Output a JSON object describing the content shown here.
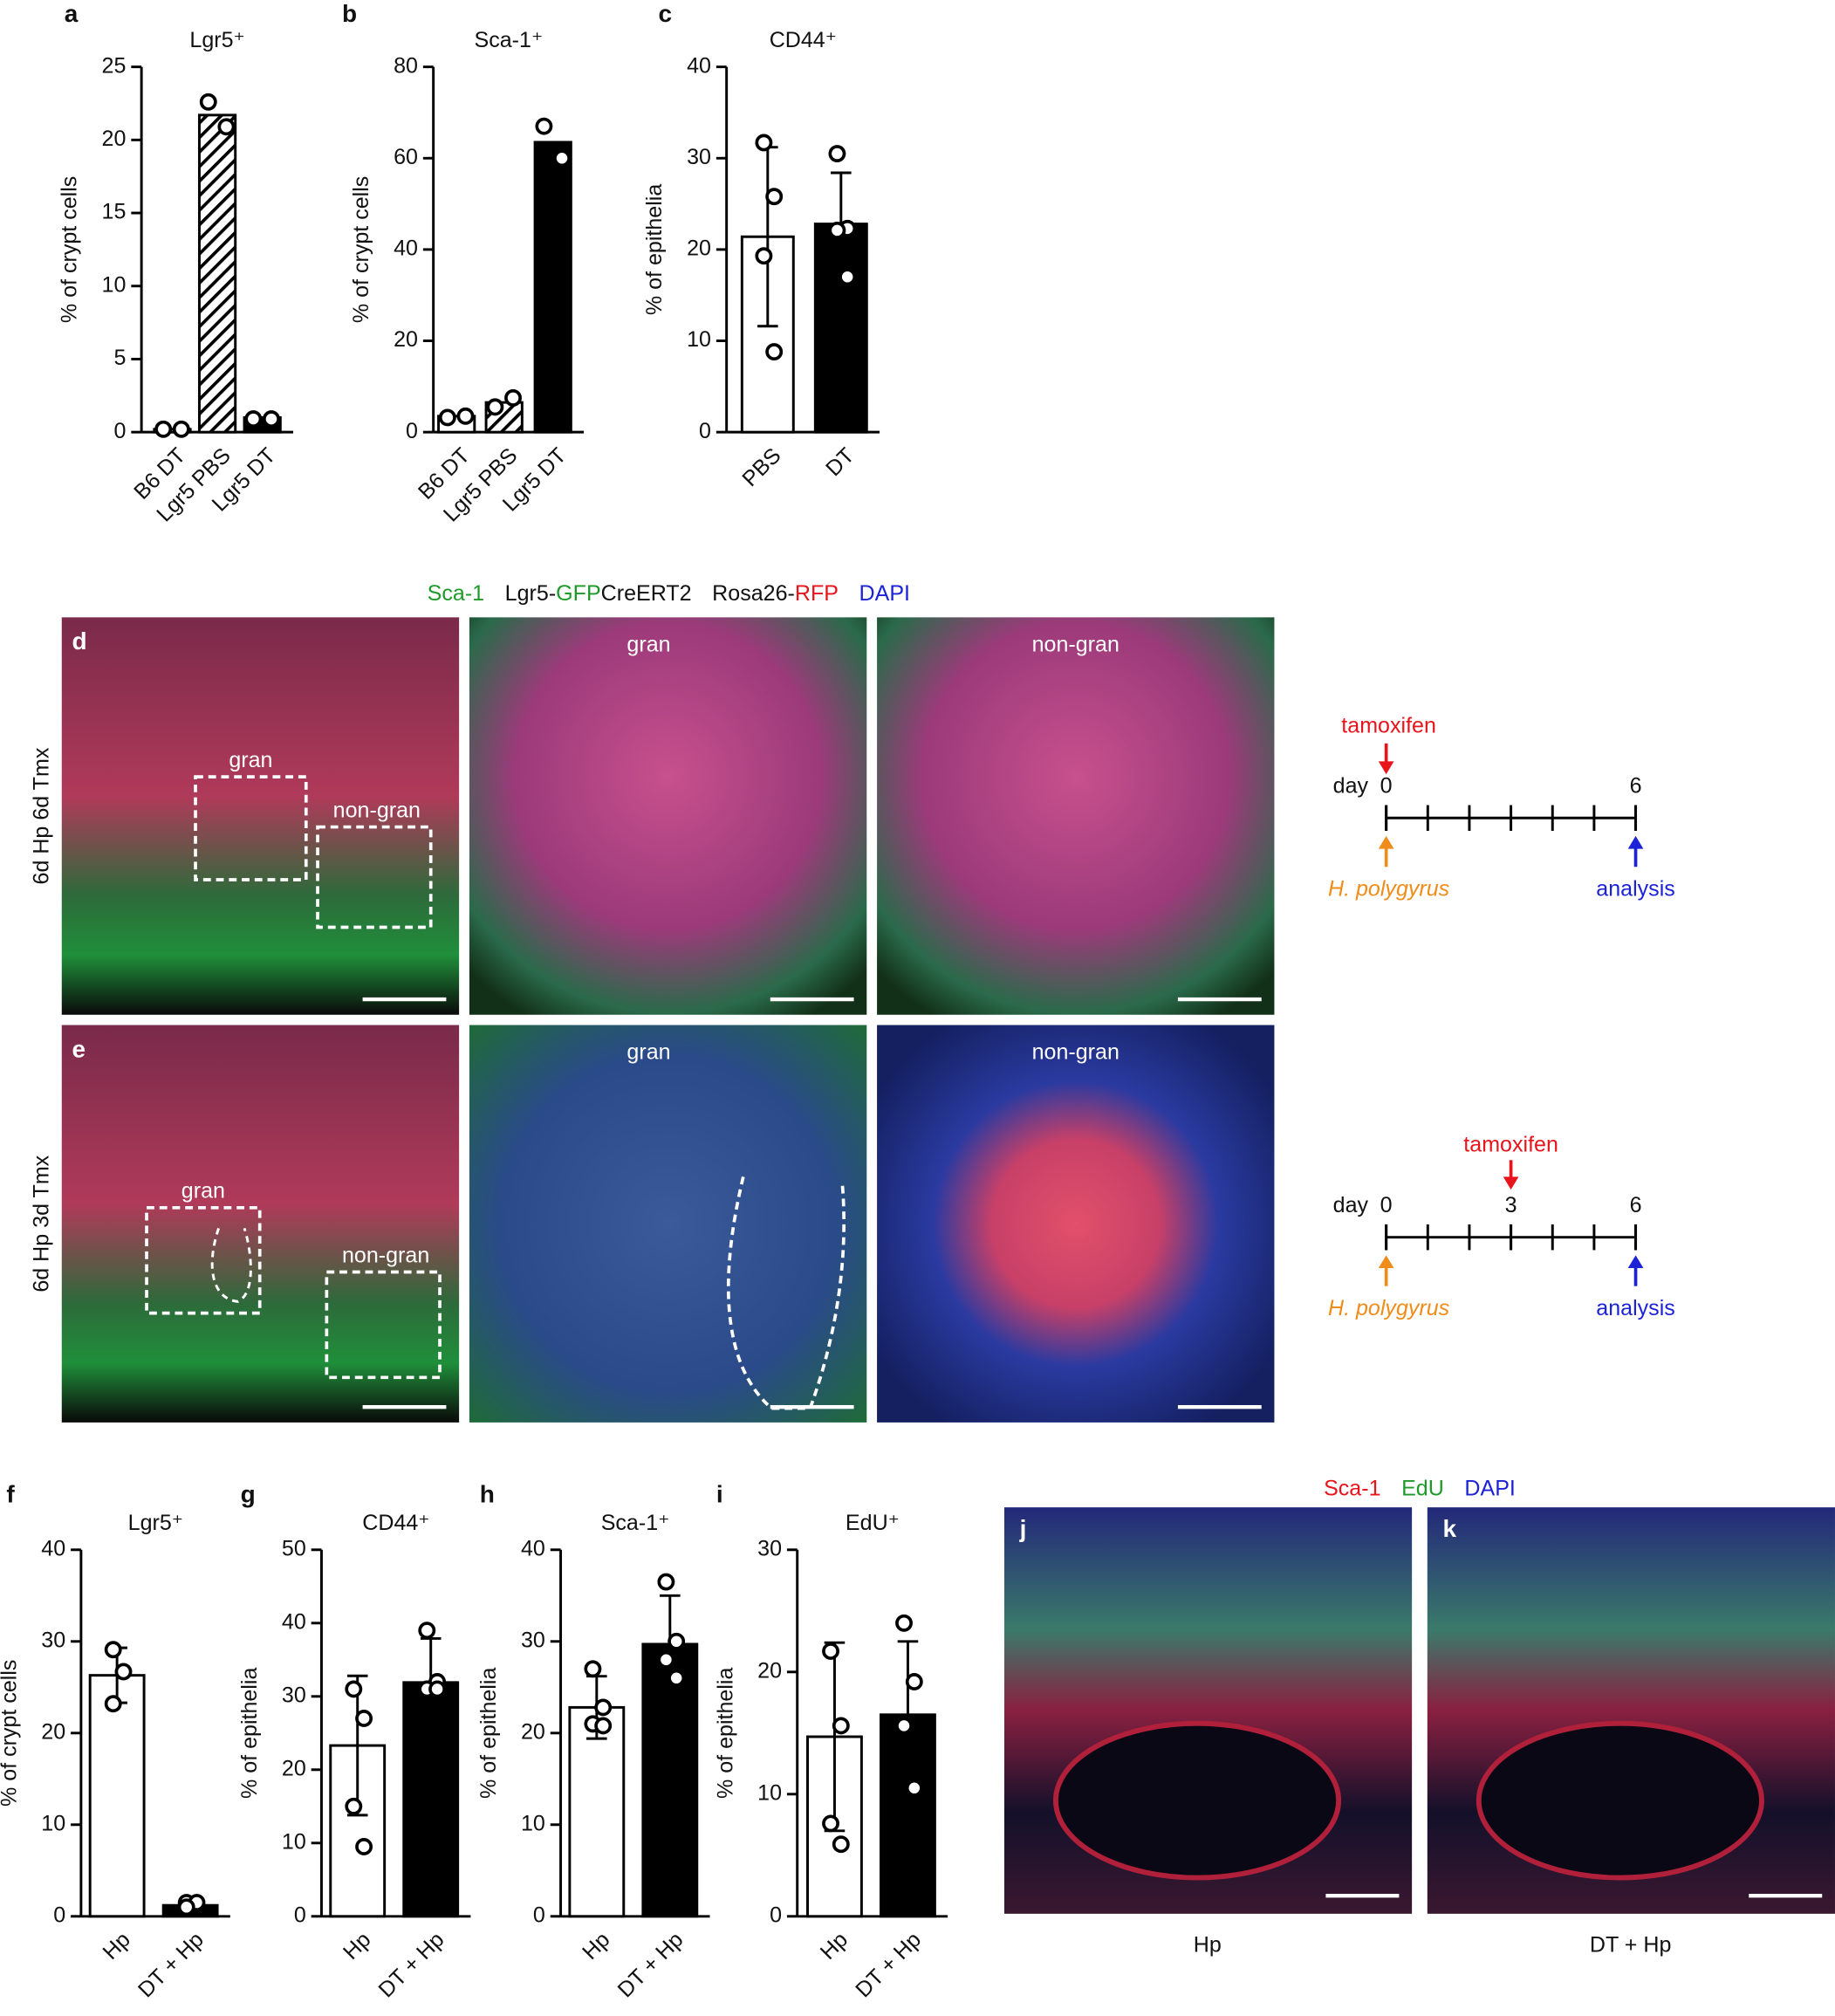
{
  "chart_data": [
    {
      "type": "bar",
      "panel": "a",
      "title": "Lgr5⁺",
      "y_label": "% of crypt cells",
      "categories": [
        "B6 DT",
        "Lgr5 PBS",
        "Lgr5 DT"
      ],
      "values": [
        0.2,
        21.7,
        1
      ],
      "points": [
        [
          0.2,
          0.2
        ],
        [
          22.6,
          20.9
        ],
        [
          0.9,
          0.9
        ]
      ],
      "bar_fills": [
        "white",
        "hatched",
        "black"
      ],
      "ylim": [
        0,
        25
      ],
      "yticks": [
        0,
        5,
        10,
        15,
        20,
        25
      ]
    },
    {
      "type": "bar",
      "panel": "b",
      "title": "Sca-1⁺",
      "y_label": "% of crypt cells",
      "categories": [
        "B6 DT",
        "Lgr5 PBS",
        "Lgr5 DT"
      ],
      "values": [
        3.5,
        6.5,
        63.5
      ],
      "points": [
        [
          3.2,
          3.5
        ],
        [
          5.5,
          7.5
        ],
        [
          67,
          60
        ]
      ],
      "bar_fills": [
        "white",
        "hatched",
        "black"
      ],
      "ylim": [
        0,
        80
      ],
      "yticks": [
        0,
        20,
        40,
        60,
        80
      ]
    },
    {
      "type": "bar",
      "panel": "c",
      "title": "CD44⁺",
      "y_label": "% of epithelia",
      "categories": [
        "PBS",
        "DT"
      ],
      "values": [
        21.4,
        22.8
      ],
      "errors": [
        9.8,
        5.6
      ],
      "points": [
        [
          31.7,
          25.8,
          19.3,
          8.8
        ],
        [
          30.5,
          22.3,
          22.1,
          17
        ]
      ],
      "bar_fills": [
        "white",
        "black"
      ],
      "ylim": [
        0,
        40
      ],
      "yticks": [
        0,
        10,
        20,
        30,
        40
      ]
    },
    {
      "type": "bar",
      "panel": "f",
      "title": "Lgr5⁺",
      "y_label": "% of crypt cells",
      "categories": [
        "Hp",
        "DT + Hp"
      ],
      "values": [
        26.3,
        1.2
      ],
      "errors": [
        3,
        0.4
      ],
      "points": [
        [
          29.1,
          26.7,
          23.2
        ],
        [
          1.5,
          1.5,
          1.0
        ]
      ],
      "bar_fills": [
        "white",
        "black"
      ],
      "ylim": [
        0,
        40
      ],
      "yticks": [
        0,
        10,
        20,
        30,
        40
      ]
    },
    {
      "type": "bar",
      "panel": "g",
      "title": "CD44⁺",
      "y_label": "% of epithelia",
      "categories": [
        "Hp",
        "DT + Hp"
      ],
      "values": [
        23.3,
        31.9
      ],
      "errors": [
        9.5,
        6
      ],
      "points": [
        [
          31,
          27,
          15,
          9.5
        ],
        [
          39,
          32,
          31,
          31
        ]
      ],
      "bar_fills": [
        "white",
        "black"
      ],
      "ylim": [
        0,
        50
      ],
      "yticks": [
        0,
        10,
        20,
        30,
        40,
        50
      ]
    },
    {
      "type": "bar",
      "panel": "h",
      "title": "Sca-1⁺",
      "y_label": "% of epithelia",
      "categories": [
        "Hp",
        "DT + Hp"
      ],
      "values": [
        22.8,
        29.7
      ],
      "errors": [
        3.4,
        5.3
      ],
      "points": [
        [
          27,
          22.8,
          21,
          20.8
        ],
        [
          36.5,
          30,
          28,
          26
        ]
      ],
      "bar_fills": [
        "white",
        "black"
      ],
      "ylim": [
        0,
        40
      ],
      "yticks": [
        0,
        10,
        20,
        30,
        40
      ]
    },
    {
      "type": "bar",
      "panel": "i",
      "title": "EdU⁺",
      "y_label": "% of epithelia",
      "categories": [
        "Hp",
        "DT + Hp"
      ],
      "values": [
        14.7,
        16.5
      ],
      "errors": [
        7.7,
        6
      ],
      "points": [
        [
          21.7,
          15.6,
          7.6,
          5.9
        ],
        [
          24,
          19.2,
          15.6,
          10.5
        ]
      ],
      "bar_fills": [
        "white",
        "black"
      ],
      "ylim": [
        0,
        30
      ],
      "yticks": [
        0,
        10,
        20,
        30
      ]
    }
  ],
  "micrographs": {
    "stain_legend": [
      [
        {
          "text": "Sca-1",
          "color": "#1e9a2a"
        }
      ],
      [
        {
          "text": "Lgr5-",
          "color": "#111111"
        },
        {
          "text": "GFP",
          "color": "#1e9a2a"
        },
        {
          "text": "CreERT2",
          "color": "#111111"
        }
      ],
      [
        {
          "text": "Rosa26-",
          "color": "#111111"
        },
        {
          "text": "RFP",
          "color": "#e8141c"
        }
      ],
      [
        {
          "text": "DAPI",
          "color": "#1c22d6"
        }
      ]
    ],
    "rows": [
      {
        "panel": "d",
        "label": "6d Hp 6d Tmx",
        "boxes": [
          "gran",
          "non-gran"
        ],
        "zooms": [
          "gran",
          "non-gran"
        ]
      },
      {
        "panel": "e",
        "label": "6d Hp 3d Tmx",
        "boxes": [
          "gran",
          "non-gran"
        ],
        "zooms": [
          "gran",
          "non-gran"
        ]
      }
    ]
  },
  "timelines": [
    {
      "day_label": "day",
      "xlim": [
        0,
        6
      ],
      "labeled_days": [
        0,
        6
      ],
      "event_day": 0,
      "event_label": "tamoxifen",
      "start_label": "H. polygyrus",
      "end_label": "analysis"
    },
    {
      "day_label": "day",
      "xlim": [
        0,
        6
      ],
      "labeled_days": [
        0,
        3,
        6
      ],
      "event_day": 3,
      "event_label": "tamoxifen",
      "start_label": "H. polygyrus",
      "end_label": "analysis"
    }
  ],
  "edu_figure": {
    "stain_legend": [
      [
        {
          "text": "Sca-1",
          "color": "#e8141c"
        }
      ],
      [
        {
          "text": "EdU",
          "color": "#1e9a2a"
        }
      ],
      [
        {
          "text": "DAPI",
          "color": "#1c22d6"
        }
      ]
    ],
    "panels": [
      {
        "panel": "j",
        "caption": "Hp"
      },
      {
        "panel": "k",
        "caption": "DT + Hp"
      }
    ]
  }
}
